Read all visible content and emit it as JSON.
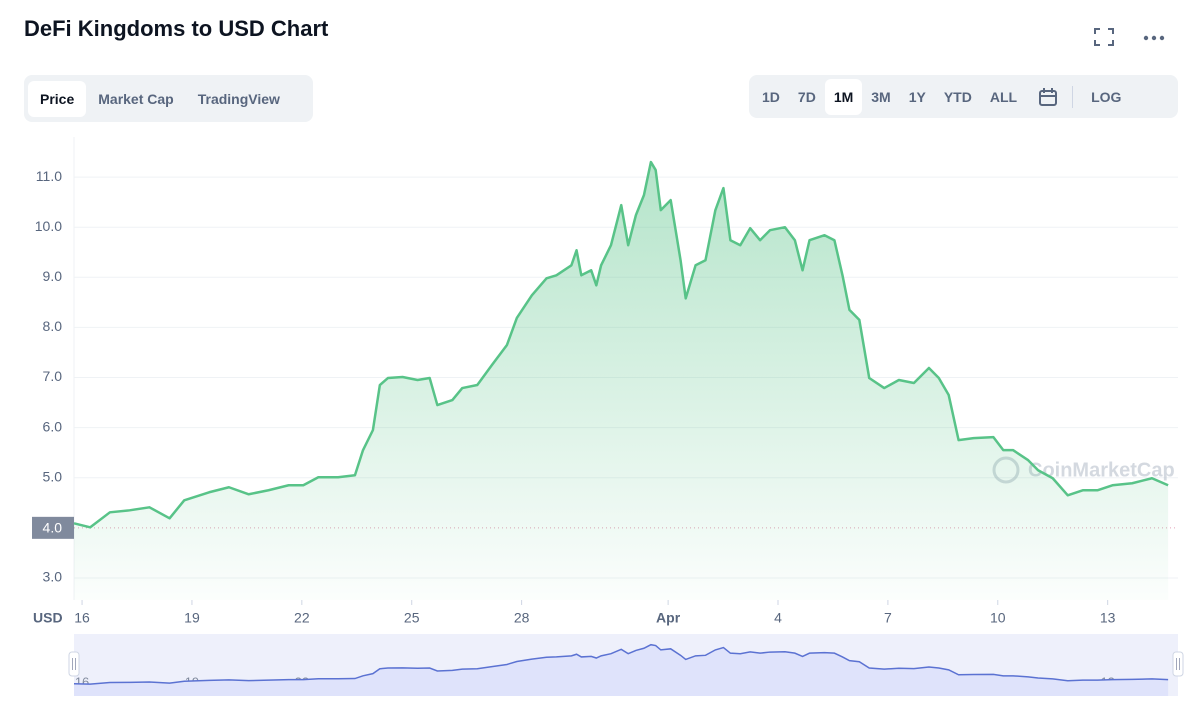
{
  "title": "DeFi Kingdoms to USD Chart",
  "tabs": [
    "Price",
    "Market Cap",
    "TradingView"
  ],
  "active_tab": 0,
  "ranges": [
    "1D",
    "7D",
    "1M",
    "3M",
    "1Y",
    "YTD",
    "ALL"
  ],
  "active_range": 2,
  "log_label": "LOG",
  "chart_data": {
    "type": "line",
    "ylabel": "USD",
    "watermark": "CoinMarketCap",
    "x": [
      15.78,
      16.22,
      16.76,
      17.3,
      17.84,
      18.39,
      18.79,
      19.47,
      20.01,
      20.55,
      21.09,
      21.64,
      22.04,
      22.45,
      22.99,
      23.45,
      23.67,
      23.94,
      24.13,
      24.35,
      24.75,
      25.16,
      25.49,
      25.7,
      26.11,
      26.38,
      26.79,
      27.19,
      27.6,
      27.87,
      28.28,
      28.68,
      28.95,
      29.36,
      29.5,
      29.63,
      29.9,
      30.04,
      30.17,
      30.44,
      30.72,
      30.91,
      31.12,
      31.34,
      31.53,
      31.66,
      31.8,
      32.07,
      32.34,
      32.48,
      32.75,
      33.02,
      33.29,
      33.51,
      33.7,
      33.97,
      34.24,
      34.51,
      34.78,
      35.19,
      35.46,
      35.67,
      35.86,
      36.27,
      36.54,
      36.76,
      36.95,
      37.22,
      37.49,
      37.9,
      38.3,
      38.71,
      39.12,
      39.39,
      39.66,
      39.93,
      40.34,
      40.88,
      41.15,
      41.42,
      41.83,
      42.1,
      42.5,
      42.91,
      43.32,
      43.72,
      44.13,
      44.67,
      45.21,
      45.65
    ],
    "series": [
      {
        "color": "#58c388",
        "values": [
          4.09,
          4.01,
          4.31,
          4.35,
          4.41,
          4.19,
          4.55,
          4.71,
          4.81,
          4.67,
          4.75,
          4.85,
          4.85,
          5.01,
          5.01,
          5.05,
          5.55,
          5.95,
          6.85,
          6.99,
          7.01,
          6.95,
          6.99,
          6.45,
          6.55,
          6.79,
          6.85,
          7.25,
          7.65,
          8.19,
          8.64,
          8.98,
          9.04,
          9.24,
          9.54,
          9.04,
          9.14,
          8.84,
          9.24,
          9.64,
          10.44,
          9.64,
          10.24,
          10.64,
          11.3,
          11.14,
          10.34,
          10.54,
          9.34,
          8.58,
          9.24,
          9.34,
          10.34,
          10.78,
          9.74,
          9.64,
          9.98,
          9.74,
          9.94,
          10.0,
          9.74,
          9.14,
          9.74,
          9.84,
          9.74,
          9.04,
          8.35,
          8.15,
          6.99,
          6.79,
          6.95,
          6.89,
          7.19,
          6.99,
          6.65,
          5.75,
          5.79,
          5.81,
          5.55,
          5.55,
          5.35,
          5.15,
          4.99,
          4.65,
          4.75,
          4.75,
          4.85,
          4.89,
          4.99,
          4.85
        ]
      }
    ],
    "xlim": [
      15.78,
      45.92
    ],
    "xticks": [
      16,
      19,
      22,
      25,
      28,
      {
        "value": 32,
        "label": "Apr"
      },
      {
        "value": 35,
        "label": "4"
      },
      {
        "value": 38,
        "label": "7"
      },
      {
        "value": 41,
        "label": "10"
      },
      {
        "value": 44,
        "label": "13"
      }
    ],
    "ylim": [
      2.56,
      11.8
    ],
    "yticks": [
      {
        "value": 3,
        "label": "3.0"
      },
      {
        "value": 5,
        "label": "5.0"
      },
      {
        "value": 6,
        "label": "6.0"
      },
      {
        "value": 7,
        "label": "7.0"
      },
      {
        "value": 8,
        "label": "8.0"
      },
      {
        "value": 9,
        "label": "9.0"
      },
      {
        "value": 10,
        "label": "10.0"
      },
      {
        "value": 11,
        "label": "11.0"
      }
    ],
    "reference_line": {
      "value": 4,
      "label": "4.0"
    },
    "grid": true
  }
}
